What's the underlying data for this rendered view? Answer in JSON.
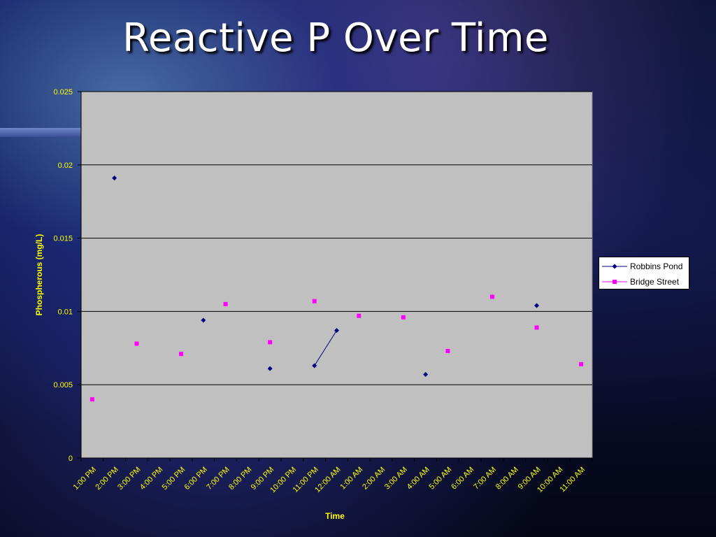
{
  "slide": {
    "title": "Reactive P Over Time"
  },
  "colors": {
    "title": "#ffffff",
    "plot_background": "#c0c0c0",
    "gridline": "#000000",
    "axis_text": "#ffff00",
    "robbins_pond": "#000080",
    "bridge_street": "#ff00ff"
  },
  "chart_data": {
    "type": "scatter",
    "title": "",
    "xlabel": "Time",
    "ylabel": "Phospherous (mg/L)",
    "ylim": [
      0,
      0.025
    ],
    "yticks": [
      "0",
      "0.005",
      "0.01",
      "0.015",
      "0.02",
      "0.025"
    ],
    "ytick_values": [
      0,
      0.005,
      0.01,
      0.015,
      0.02,
      0.025
    ],
    "categories": [
      "1:00 PM",
      "2:00 PM",
      "3:00 PM",
      "4:00 PM",
      "5:00 PM",
      "6:00 PM",
      "7:00 PM",
      "8:00 PM",
      "9:00 PM",
      "10:00 PM",
      "11:00 PM",
      "12:00 AM",
      "1:00 AM",
      "2:00 AM",
      "3:00 AM",
      "4:00 AM",
      "5:00 AM",
      "6:00 AM",
      "7:00 AM",
      "8:00 AM",
      "9:00 AM",
      "10:00 AM",
      "11:00 AM"
    ],
    "grid": true,
    "legend_position": "right",
    "series": [
      {
        "name": "Robbins Pond",
        "marker": "diamond",
        "points": [
          {
            "x": 1.5,
            "y": 0.0191
          },
          {
            "x": 5.5,
            "y": 0.0094
          },
          {
            "x": 8.5,
            "y": 0.0061
          },
          {
            "x": 10.5,
            "y": 0.0063
          },
          {
            "x": 11.5,
            "y": 0.0087
          },
          {
            "x": 15.5,
            "y": 0.0057
          },
          {
            "x": 20.5,
            "y": 0.0104
          }
        ],
        "connected_segments": [
          [
            10.5,
            11.5
          ]
        ]
      },
      {
        "name": "Bridge Street",
        "marker": "square",
        "points": [
          {
            "x": 0.5,
            "y": 0.004
          },
          {
            "x": 2.5,
            "y": 0.0078
          },
          {
            "x": 4.5,
            "y": 0.0071
          },
          {
            "x": 6.5,
            "y": 0.0105
          },
          {
            "x": 8.5,
            "y": 0.0079
          },
          {
            "x": 10.5,
            "y": 0.0107
          },
          {
            "x": 12.5,
            "y": 0.0097
          },
          {
            "x": 14.5,
            "y": 0.0096
          },
          {
            "x": 16.5,
            "y": 0.0073
          },
          {
            "x": 18.5,
            "y": 0.011
          },
          {
            "x": 20.5,
            "y": 0.0089
          },
          {
            "x": 22.5,
            "y": 0.0064
          }
        ]
      }
    ]
  }
}
